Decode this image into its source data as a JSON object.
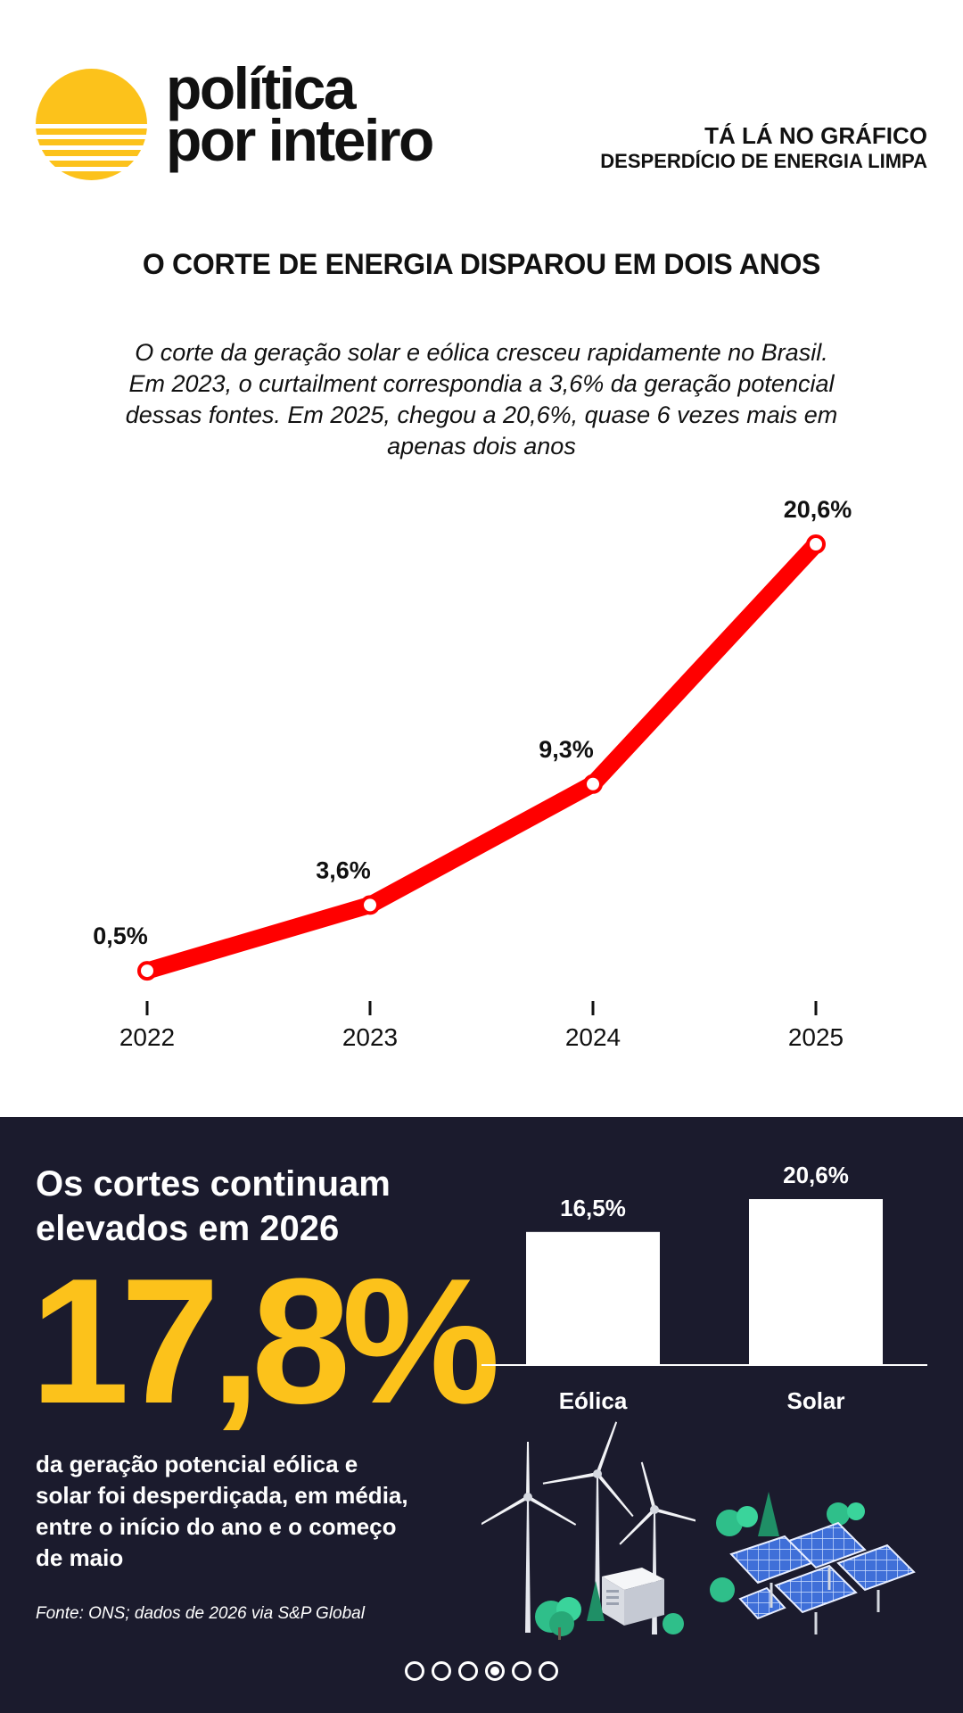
{
  "header": {
    "brand_line1": "política",
    "brand_line2": "por inteiro",
    "tag_line1": "TÁ LÁ NO GRÁFICO",
    "tag_line2": "DESPERDÍCIO DE ENERGIA LIMPA"
  },
  "title": "O CORTE DE ENERGIA DISPAROU EM DOIS ANOS",
  "subtitle": "O corte da geração solar e eólica cresceu rapidamente no Brasil. Em 2023, o curtailment correspondia a 3,6% da geração potencial dessas fontes. Em 2025, chegou a 20,6%, quase 6 vezes mais em apenas dois anos",
  "colors": {
    "line": "#ff0000",
    "accent_yellow": "#fcc21b",
    "dark_panel": "#1b1b2d",
    "bar": "#ffffff"
  },
  "chart_data": [
    {
      "type": "line",
      "x": [
        "2022",
        "2023",
        "2024",
        "2025"
      ],
      "series": [
        {
          "values": [
            0.5,
            3.6,
            9.3,
            20.6
          ],
          "labels": [
            "0,5%",
            "3,6%",
            "9,3%",
            "20,6%"
          ]
        }
      ],
      "ylim": [
        0,
        20.6
      ],
      "grid": false
    },
    {
      "type": "bar",
      "categories": [
        "Eólica",
        "Solar"
      ],
      "values": [
        16.5,
        20.6
      ],
      "labels": [
        "16,5%",
        "20,6%"
      ],
      "grid": false
    }
  ],
  "panel": {
    "heading_line1": "Os cortes continuam",
    "heading_line2": "elevados em 2026",
    "big_number": "17,8%",
    "description": "da geração potencial eólica e solar foi desperdiçada, em média, entre o início do ano e o começo de maio",
    "source": "Fonte: ONS; dados de 2026 via S&P Global"
  },
  "pager": {
    "count": 6,
    "active_index": 3
  },
  "icons": [
    "sun-logo-icon",
    "wind-turbines-icon",
    "solar-panels-icon"
  ]
}
